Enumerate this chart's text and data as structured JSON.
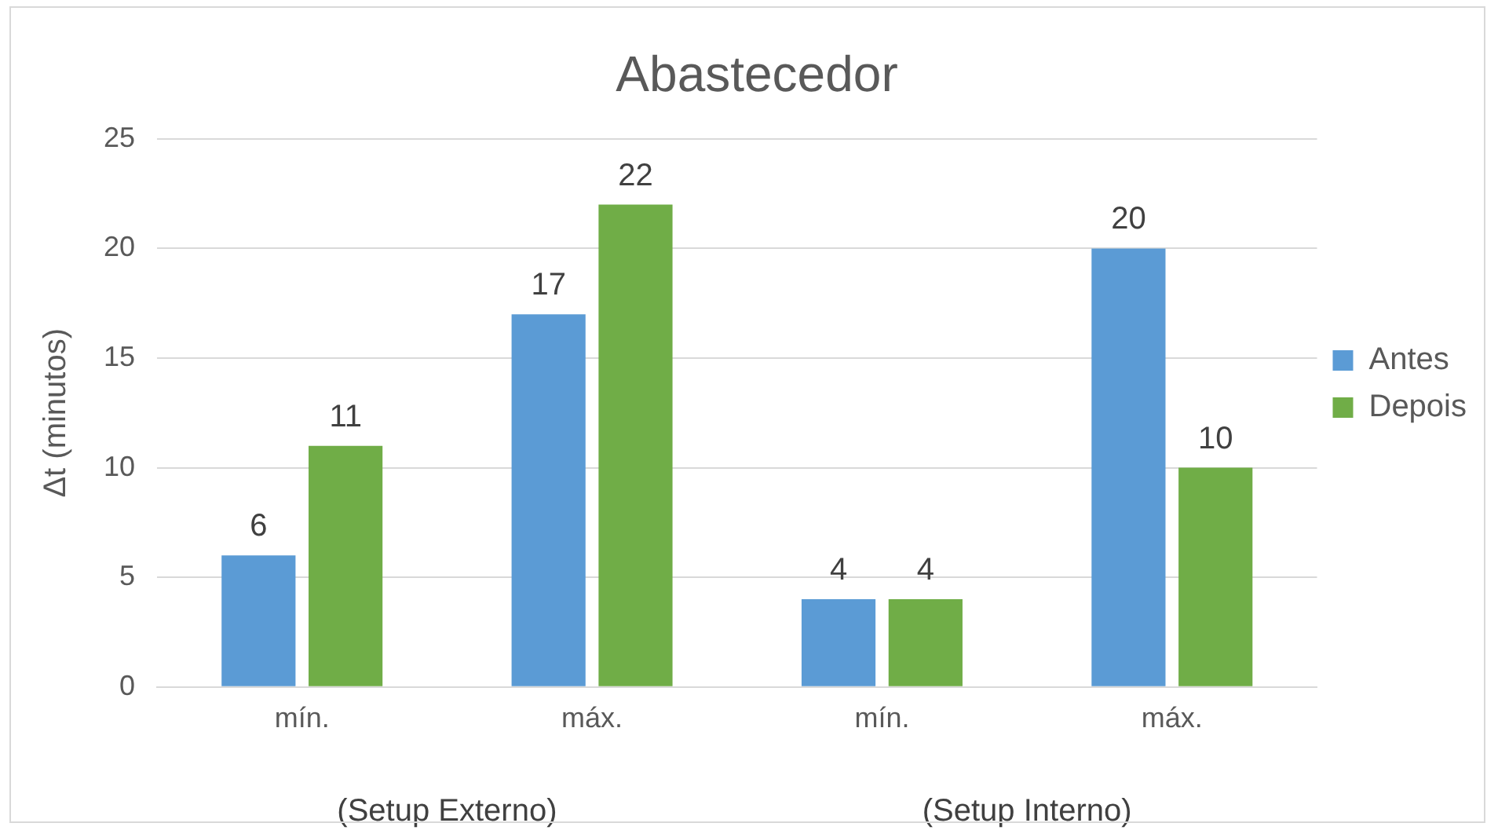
{
  "chart_data": {
    "type": "bar",
    "title": "Abastecedor",
    "ylabel": "Δt (minutos)",
    "categories": [
      "mín.",
      "máx.",
      "mín.",
      "máx."
    ],
    "series": [
      {
        "name": "Antes",
        "color": "#5b9bd5",
        "values": [
          6,
          17,
          4,
          20
        ]
      },
      {
        "name": "Depois",
        "color": "#70ad47",
        "values": [
          11,
          22,
          4,
          10
        ]
      }
    ],
    "annotations": [
      "(Setup Externo)",
      "(Setup Interno)"
    ],
    "ylim": [
      0,
      25
    ],
    "yticks": [
      0,
      5,
      10,
      15,
      20,
      25
    ],
    "grid": "y",
    "legend": "right",
    "data_labels": true
  }
}
